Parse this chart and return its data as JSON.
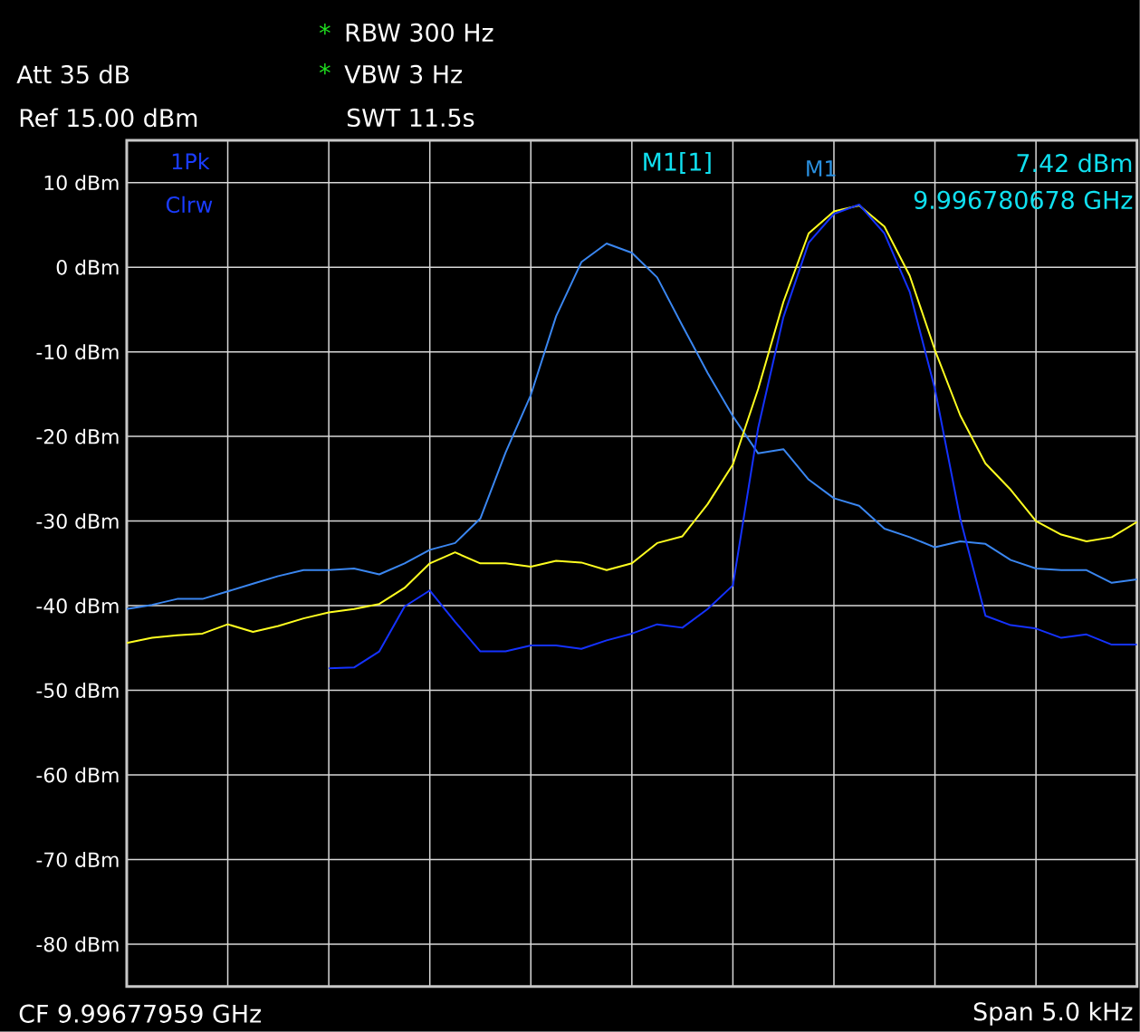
{
  "chart_data": {
    "type": "line",
    "categories": [
      null,
      null,
      null,
      null,
      null,
      null,
      null,
      null,
      null,
      null,
      null,
      null,
      null,
      null,
      null,
      null,
      null,
      null,
      null,
      null,
      null,
      null,
      null,
      null,
      null,
      null,
      null,
      null,
      null,
      null,
      null,
      null,
      null,
      null,
      null,
      null,
      null,
      null,
      null,
      null,
      null
    ],
    "series": [
      {
        "color": "#3a86f0",
        "values": [
          -40.4,
          -39.9,
          -39.2,
          -39.2,
          -38.3,
          -37.4,
          -36.5,
          -35.8,
          -35.8,
          -35.6,
          -36.3,
          -35.0,
          -33.4,
          -32.6,
          -29.7,
          -21.9,
          -15.1,
          -5.8,
          0.6,
          2.8,
          1.7,
          -1.2,
          -6.9,
          -12.5,
          -17.6,
          -22.0,
          -21.5,
          -25.1,
          -27.3,
          -28.2,
          -30.9,
          -31.9,
          -33.1,
          -32.4,
          -32.7,
          -34.6,
          -35.6,
          -35.8,
          -35.8,
          -37.3,
          -36.9
        ]
      },
      {
        "color": "#ffff20",
        "values": [
          -44.4,
          -43.8,
          -43.5,
          -43.3,
          -42.2,
          -43.1,
          -42.4,
          -41.5,
          -40.8,
          -40.4,
          -39.8,
          -37.9,
          -35.0,
          -33.7,
          -35.0,
          -35.0,
          -35.4,
          -34.7,
          -34.9,
          -35.8,
          -35.0,
          -32.6,
          -31.8,
          -28.0,
          -23.3,
          -14.4,
          -4.1,
          4.0,
          6.6,
          7.3,
          4.8,
          -1.0,
          -9.8,
          -17.5,
          -23.2,
          -26.3,
          -30.0,
          -31.6,
          -32.4,
          -31.9,
          -30.1
        ]
      },
      {
        "color": "#1432ff",
        "values": [
          null,
          null,
          null,
          null,
          null,
          null,
          null,
          null,
          -47.4,
          -47.3,
          -45.4,
          -40.1,
          -38.2,
          -41.9,
          -45.4,
          -45.4,
          -44.7,
          -44.7,
          -45.1,
          -44.1,
          -43.3,
          -42.2,
          -42.6,
          -40.4,
          -37.6,
          -19.0,
          -5.9,
          2.9,
          6.3,
          7.4,
          4.0,
          -2.9,
          -14.4,
          -29.7,
          -41.2,
          -42.3,
          -42.7,
          -43.8,
          -43.4,
          -44.6,
          -44.6
        ]
      }
    ],
    "ylim": [
      -85,
      15
    ],
    "yticks": [
      {
        "value": 10,
        "label": "10 dBm"
      },
      {
        "value": 0,
        "label": "0 dBm"
      },
      {
        "value": -10,
        "label": "-10 dBm"
      },
      {
        "value": -20,
        "label": "-20 dBm"
      },
      {
        "value": -30,
        "label": "-30 dBm"
      },
      {
        "value": -40,
        "label": "-40 dBm"
      },
      {
        "value": -50,
        "label": "-50 dBm"
      },
      {
        "value": -60,
        "label": "-60 dBm"
      },
      {
        "value": -70,
        "label": "-70 dBm"
      },
      {
        "value": -80,
        "label": "-80 dBm"
      }
    ],
    "grid": true,
    "annotations": [
      "*",
      "RBW 300 Hz",
      "Att 35 dB",
      "*",
      "VBW 3 Hz",
      "Ref 15.00 dBm",
      "SWT 11.5s",
      "1Pk",
      "Clrw",
      "M1[1]",
      "M1",
      "7.42 dBm",
      "9.996780678 GHz",
      "CF 9.99677959 GHz",
      "Span 5.0 kHz"
    ]
  }
}
